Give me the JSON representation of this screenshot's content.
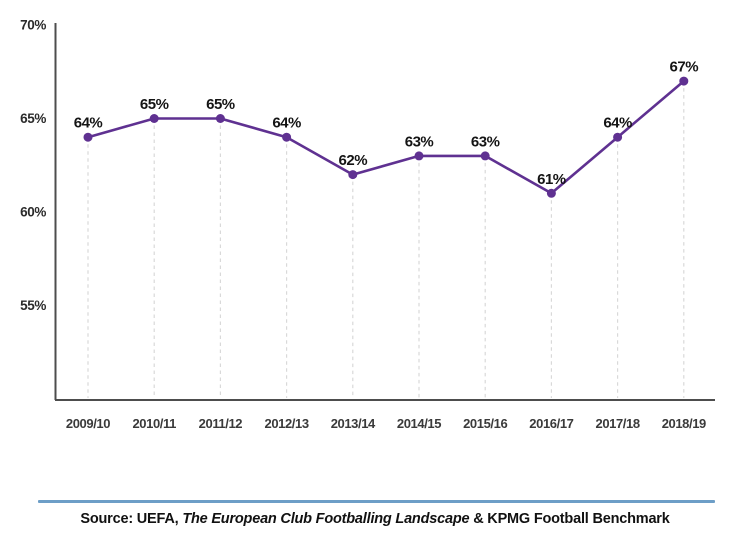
{
  "chart_data": {
    "type": "line",
    "title": "",
    "categories": [
      "2009/10",
      "2010/11",
      "2011/12",
      "2012/13",
      "2013/14",
      "2014/15",
      "2015/16",
      "2016/17",
      "2017/18",
      "2018/19"
    ],
    "values": [
      64,
      65,
      65,
      64,
      62,
      63,
      63,
      61,
      64,
      67
    ],
    "data_labels": [
      "64%",
      "65%",
      "65%",
      "64%",
      "62%",
      "63%",
      "63%",
      "61%",
      "64%",
      "67%"
    ],
    "unit": "%",
    "xlabel": "",
    "ylabel": "",
    "ylim": [
      50,
      70
    ],
    "ytick_values": [
      70,
      65,
      60,
      55
    ],
    "ytick_labels": [
      "70%",
      "65%",
      "60%",
      "55%"
    ],
    "grid": "vertical-dashed-per-point",
    "legend_position": "none",
    "colors": {
      "line": "#5f3191",
      "point": "#5f3191",
      "gridline": "#d9d9d9",
      "axis": "#4d4d4d",
      "value_label": "#141414",
      "ytick_label": "#2b2b2b",
      "xtick_label": "#3a3a3a"
    }
  },
  "footer": {
    "divider_color": "#6d9ec7",
    "source_prefix": "Source: UEFA, ",
    "source_title_italic": "The European Club Footballing Landscape",
    "source_suffix": " & KPMG Football Benchmark"
  }
}
